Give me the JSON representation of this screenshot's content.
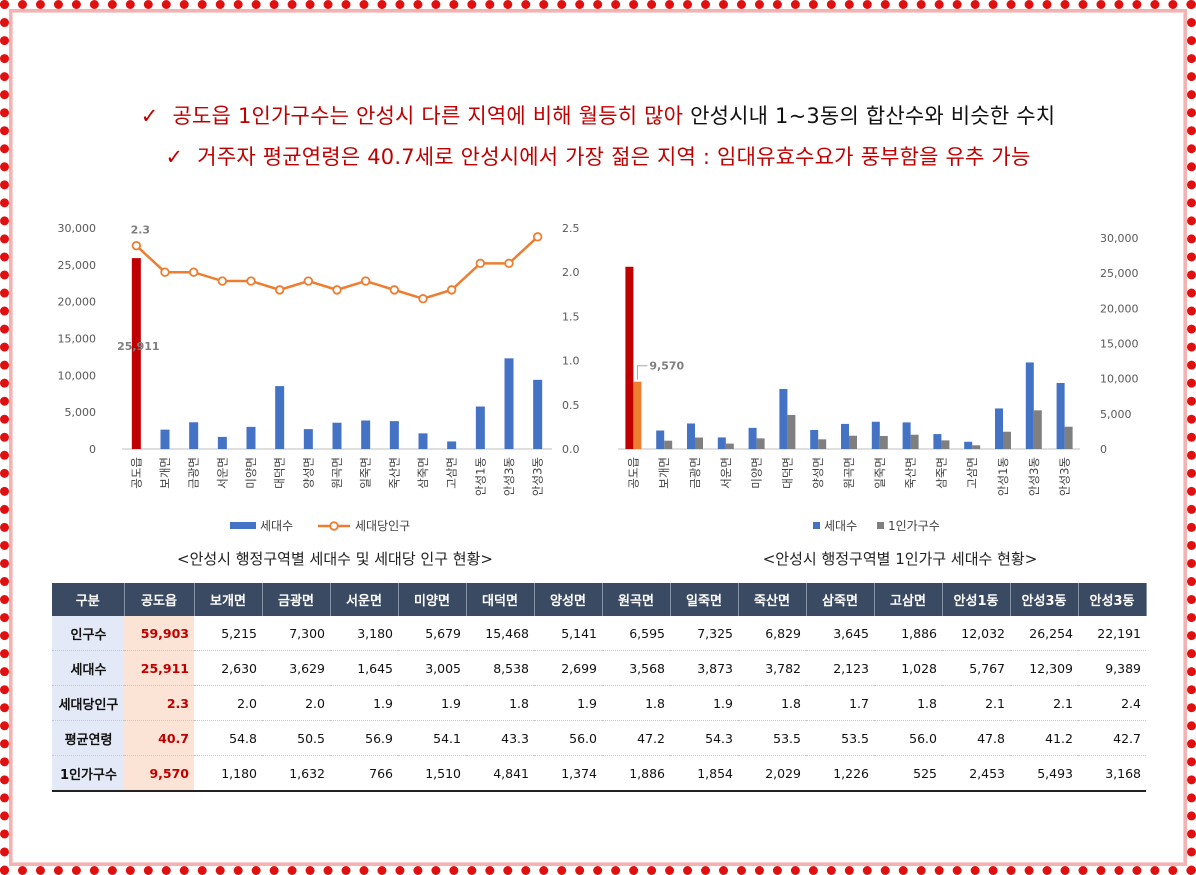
{
  "headlines": {
    "line1_red": "공도읍 1인가구수는 안성시 다른 지역에 비해 월등히 많아",
    "line1_black": "안성시내 1~3동의 합산수와 비슷한 수치",
    "line2_red": "거주자 평균연령은 40.7세로 안성시에서 가장 젊은 지역 : 임대유효수요가 풍부함을 유추 가능",
    "check_symbol": "✓"
  },
  "captions": {
    "chart1": "<안성시 행정구역별 세대수 및 세대당 인구 현황>",
    "chart2": "<안성시 행정구역별 1인가구 세대수 현황>"
  },
  "colors": {
    "highlight_bar": "#c00000",
    "highlight_bar2": "#ed7d31",
    "bar_blue": "#4472c4",
    "bar_gray": "#7f7f7f",
    "line_orange": "#ed7d31",
    "axis_text": "#595959"
  },
  "chart_data": [
    {
      "type": "bar+line",
      "categories": [
        "공도읍",
        "보개면",
        "금광면",
        "서운면",
        "미양면",
        "대덕면",
        "양성면",
        "원곡면",
        "일죽면",
        "죽산면",
        "삼죽면",
        "고삼면",
        "안성1동",
        "안성3동",
        "안성3동"
      ],
      "series": [
        {
          "name": "세대수",
          "axis": "left",
          "kind": "bar",
          "values": [
            25911,
            2630,
            3629,
            1645,
            3005,
            8538,
            2699,
            3568,
            3873,
            3782,
            2123,
            1028,
            5767,
            12309,
            9389
          ]
        },
        {
          "name": "세대당인구",
          "axis": "right",
          "kind": "line",
          "values": [
            2.3,
            2.0,
            2.0,
            1.9,
            1.9,
            1.8,
            1.9,
            1.8,
            1.9,
            1.8,
            1.7,
            1.8,
            2.1,
            2.1,
            2.4
          ]
        }
      ],
      "left_axis": {
        "min": 0,
        "max": 30000,
        "ticks": [
          "0",
          "5,000",
          "10,000",
          "15,000",
          "20,000",
          "25,000",
          "30,000"
        ]
      },
      "right_axis": {
        "min": 0,
        "max": 2.5,
        "ticks": [
          "0.0",
          "0.5",
          "1.0",
          "1.5",
          "2.0",
          "2.5"
        ]
      },
      "data_labels": {
        "bar": "25,911",
        "line": "2.3"
      },
      "legend": [
        "세대수",
        "세대당인구"
      ],
      "legend_position": "bottom",
      "grid": false
    },
    {
      "type": "bar",
      "categories": [
        "공도읍",
        "보개면",
        "금광면",
        "서운면",
        "미양면",
        "대덕면",
        "양성면",
        "원곡면",
        "일죽면",
        "죽산면",
        "삼죽면",
        "고삼면",
        "안성1동",
        "안성3동",
        "안성3동"
      ],
      "series": [
        {
          "name": "세대수",
          "values": [
            25911,
            2630,
            3629,
            1645,
            3005,
            8538,
            2699,
            3568,
            3873,
            3782,
            2123,
            1028,
            5767,
            12309,
            9389
          ]
        },
        {
          "name": "1인가구수",
          "values": [
            9570,
            1180,
            1632,
            766,
            1510,
            4841,
            1374,
            1886,
            1854,
            2029,
            1226,
            525,
            2453,
            5493,
            3168
          ]
        }
      ],
      "right_axis": {
        "min": 0,
        "max": 30000,
        "ticks": [
          "0",
          "5,000",
          "10,000",
          "15,000",
          "20,000",
          "25,000",
          "30,000"
        ]
      },
      "data_labels": {
        "callout": "9,570"
      },
      "legend": [
        "세대수",
        "1인가구수"
      ],
      "legend_position": "bottom",
      "grid": false
    }
  ],
  "table": {
    "headers": [
      "구분",
      "공도읍",
      "보개면",
      "금광면",
      "서운면",
      "미양면",
      "대덕면",
      "양성면",
      "원곡면",
      "일죽면",
      "죽산면",
      "삼죽면",
      "고삼면",
      "안성1동",
      "안성3동",
      "안성3동"
    ],
    "rows": [
      {
        "label": "인구수",
        "cells": [
          "59,903",
          "5,215",
          "7,300",
          "3,180",
          "5,679",
          "15,468",
          "5,141",
          "6,595",
          "7,325",
          "6,829",
          "3,645",
          "1,886",
          "12,032",
          "26,254",
          "22,191"
        ]
      },
      {
        "label": "세대수",
        "cells": [
          "25,911",
          "2,630",
          "3,629",
          "1,645",
          "3,005",
          "8,538",
          "2,699",
          "3,568",
          "3,873",
          "3,782",
          "2,123",
          "1,028",
          "5,767",
          "12,309",
          "9,389"
        ]
      },
      {
        "label": "세대당인구",
        "cells": [
          "2.3",
          "2.0",
          "2.0",
          "1.9",
          "1.9",
          "1.8",
          "1.9",
          "1.8",
          "1.9",
          "1.8",
          "1.7",
          "1.8",
          "2.1",
          "2.1",
          "2.4"
        ]
      },
      {
        "label": "평균연령",
        "cells": [
          "40.7",
          "54.8",
          "50.5",
          "56.9",
          "54.1",
          "43.3",
          "56.0",
          "47.2",
          "54.3",
          "53.5",
          "53.5",
          "56.0",
          "47.8",
          "41.2",
          "42.7"
        ]
      },
      {
        "label": "1인가구수",
        "cells": [
          "9,570",
          "1,180",
          "1,632",
          "766",
          "1,510",
          "4,841",
          "1,374",
          "1,886",
          "1,854",
          "2,029",
          "1,226",
          "525",
          "2,453",
          "5,493",
          "3,168"
        ]
      }
    ]
  }
}
